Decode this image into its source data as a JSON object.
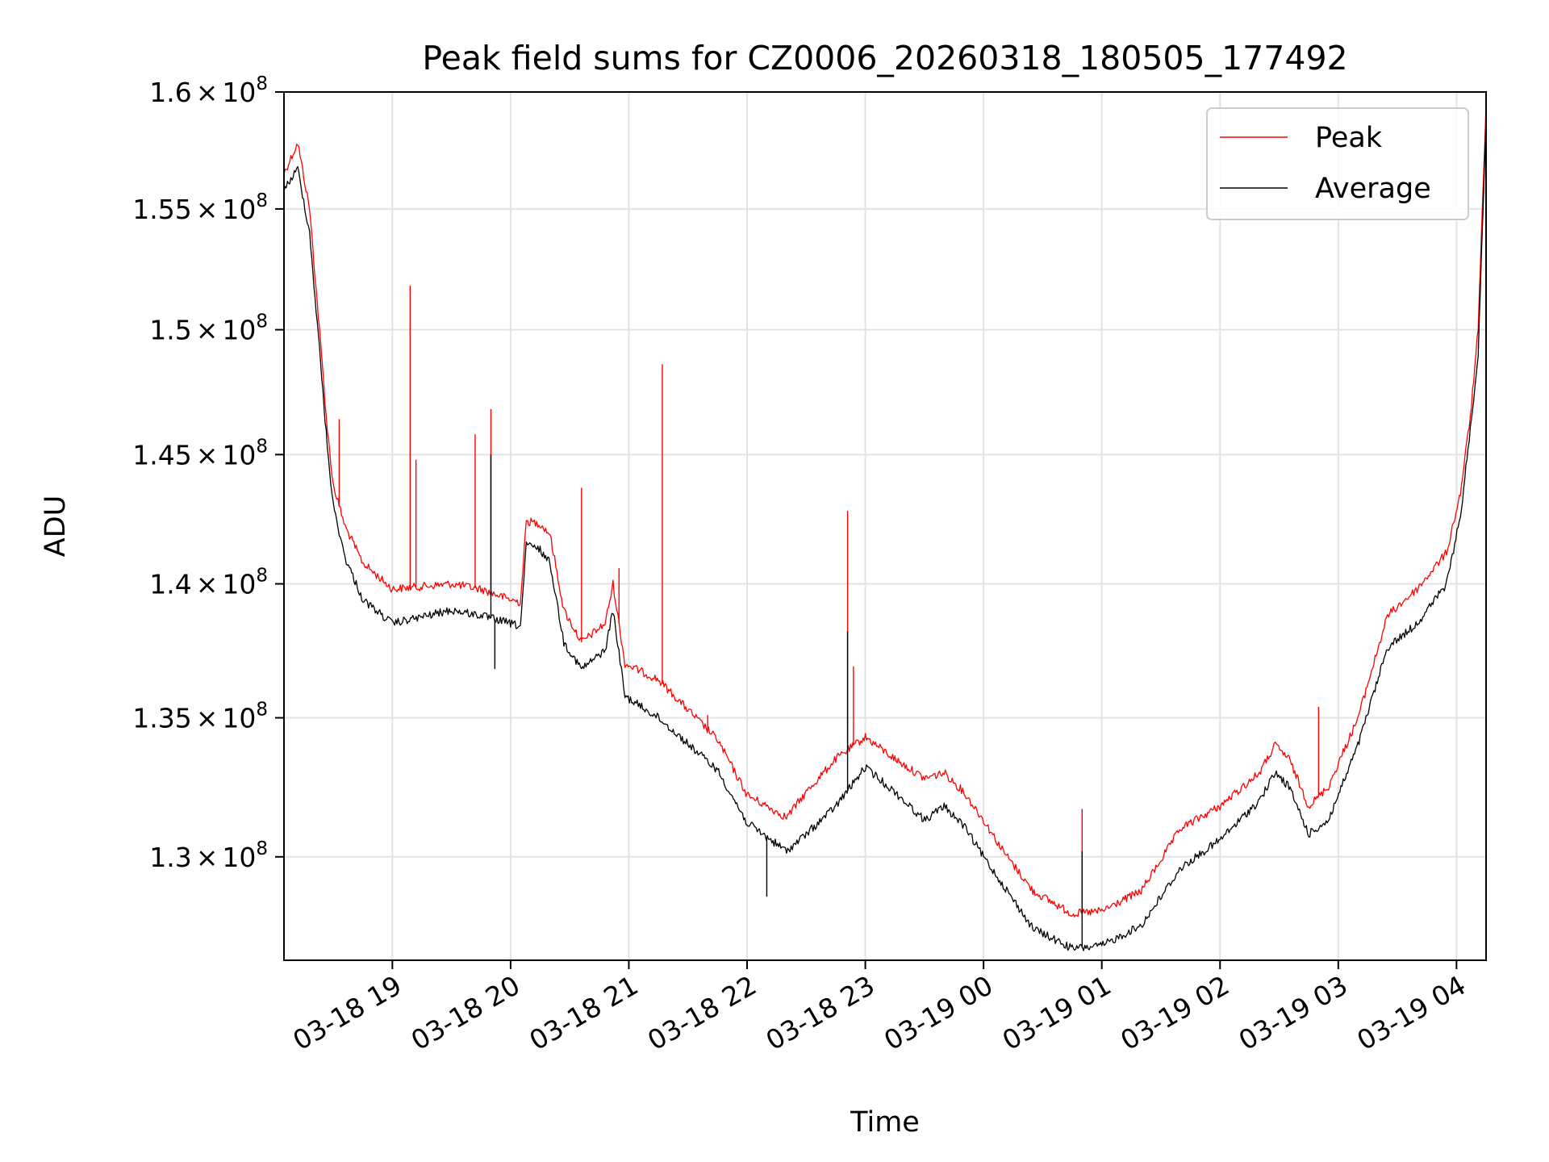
{
  "chart_data": {
    "type": "line",
    "title": "Peak field sums for CZ0006_20260318_180505_177492",
    "xlabel": "Time",
    "ylabel": "ADU",
    "xlim": [
      "03-18 18:05",
      "03-19 04:15"
    ],
    "ylim": [
      126400000,
      160000000
    ],
    "y_log_scale": true,
    "grid": true,
    "legend_position": "top-right",
    "x_ticks": [
      {
        "value": "03-18 19:00",
        "label": "03-18 19"
      },
      {
        "value": "03-18 20:00",
        "label": "03-18 20"
      },
      {
        "value": "03-18 21:00",
        "label": "03-18 21"
      },
      {
        "value": "03-18 22:00",
        "label": "03-18 22"
      },
      {
        "value": "03-18 23:00",
        "label": "03-18 23"
      },
      {
        "value": "03-19 00:00",
        "label": "03-19 00"
      },
      {
        "value": "03-19 01:00",
        "label": "03-19 01"
      },
      {
        "value": "03-19 02:00",
        "label": "03-19 02"
      },
      {
        "value": "03-19 03:00",
        "label": "03-19 03"
      },
      {
        "value": "03-19 04:00",
        "label": "03-19 04"
      }
    ],
    "y_ticks": [
      {
        "value": 130000000,
        "mantissa": "1.3",
        "base": "10",
        "exponent": "8"
      },
      {
        "value": 135000000,
        "mantissa": "1.35",
        "base": "10",
        "exponent": "8"
      },
      {
        "value": 140000000,
        "mantissa": "1.4",
        "base": "10",
        "exponent": "8"
      },
      {
        "value": 145000000,
        "mantissa": "1.45",
        "base": "10",
        "exponent": "8"
      },
      {
        "value": 150000000,
        "mantissa": "1.5",
        "base": "10",
        "exponent": "8"
      },
      {
        "value": 155000000,
        "mantissa": "1.55",
        "base": "10",
        "exponent": "8"
      },
      {
        "value": 160000000,
        "mantissa": "1.6",
        "base": "10",
        "exponent": "8"
      }
    ],
    "series": [
      {
        "name": "Peak",
        "color": "#ff0000",
        "points": [
          [
            "03-18 18:05",
            156500000
          ],
          [
            "03-18 18:12",
            157800000
          ],
          [
            "03-18 18:18",
            155000000
          ],
          [
            "03-18 18:23",
            150000000
          ],
          [
            "03-18 18:27",
            146000000
          ],
          [
            "03-18 18:30",
            143800000
          ],
          [
            "03-18 18:36",
            142200000
          ],
          [
            "03-18 18:45",
            140800000
          ],
          [
            "03-18 19:00",
            139800000
          ],
          [
            "03-18 19:30",
            140000000
          ],
          [
            "03-18 19:45",
            139800000
          ],
          [
            "03-18 20:00",
            139400000
          ],
          [
            "03-18 20:05",
            139300000
          ],
          [
            "03-18 20:08",
            142400000
          ],
          [
            "03-18 20:15",
            142300000
          ],
          [
            "03-18 20:20",
            141900000
          ],
          [
            "03-18 20:27",
            139000000
          ],
          [
            "03-18 20:36",
            137800000
          ],
          [
            "03-18 20:48",
            138500000
          ],
          [
            "03-18 20:52",
            140000000
          ],
          [
            "03-18 20:58",
            137000000
          ],
          [
            "03-18 21:15",
            136400000
          ],
          [
            "03-18 21:45",
            134200000
          ],
          [
            "03-18 22:00",
            132200000
          ],
          [
            "03-18 22:20",
            131400000
          ],
          [
            "03-18 22:30",
            132300000
          ],
          [
            "03-18 22:45",
            133500000
          ],
          [
            "03-18 23:00",
            134300000
          ],
          [
            "03-18 23:15",
            133500000
          ],
          [
            "03-18 23:30",
            132800000
          ],
          [
            "03-18 23:40",
            133000000
          ],
          [
            "03-18 23:50",
            132300000
          ],
          [
            "03-19 00:00",
            131300000
          ],
          [
            "03-19 00:10",
            130200000
          ],
          [
            "03-19 00:25",
            128800000
          ],
          [
            "03-19 00:45",
            128000000
          ],
          [
            "03-19 01:00",
            128100000
          ],
          [
            "03-19 01:20",
            128800000
          ],
          [
            "03-19 01:40",
            131000000
          ],
          [
            "03-19 02:00",
            131800000
          ],
          [
            "03-19 02:20",
            133000000
          ],
          [
            "03-19 02:28",
            134000000
          ],
          [
            "03-19 02:35",
            133500000
          ],
          [
            "03-19 02:45",
            131800000
          ],
          [
            "03-19 02:55",
            132500000
          ],
          [
            "03-19 03:10",
            135000000
          ],
          [
            "03-19 03:25",
            138800000
          ],
          [
            "03-19 03:40",
            139800000
          ],
          [
            "03-19 03:55",
            141200000
          ],
          [
            "03-19 04:02",
            143500000
          ],
          [
            "03-19 04:07",
            146500000
          ],
          [
            "03-19 04:11",
            150000000
          ],
          [
            "03-19 04:15",
            159500000
          ]
        ]
      },
      {
        "name": "Average",
        "color": "#000000",
        "points": [
          [
            "03-18 18:05",
            155800000
          ],
          [
            "03-18 18:12",
            156700000
          ],
          [
            "03-18 18:18",
            154000000
          ],
          [
            "03-18 18:23",
            149200000
          ],
          [
            "03-18 18:27",
            145300000
          ],
          [
            "03-18 18:30",
            143000000
          ],
          [
            "03-18 18:36",
            141000000
          ],
          [
            "03-18 18:45",
            139400000
          ],
          [
            "03-18 19:00",
            138500000
          ],
          [
            "03-18 19:30",
            139000000
          ],
          [
            "03-18 19:45",
            138800000
          ],
          [
            "03-18 20:00",
            138500000
          ],
          [
            "03-18 20:05",
            138400000
          ],
          [
            "03-18 20:08",
            141500000
          ],
          [
            "03-18 20:15",
            141300000
          ],
          [
            "03-18 20:20",
            140800000
          ],
          [
            "03-18 20:27",
            137800000
          ],
          [
            "03-18 20:36",
            136800000
          ],
          [
            "03-18 20:48",
            137500000
          ],
          [
            "03-18 20:52",
            139000000
          ],
          [
            "03-18 20:58",
            135800000
          ],
          [
            "03-18 21:15",
            135000000
          ],
          [
            "03-18 21:45",
            133100000
          ],
          [
            "03-18 22:00",
            131200000
          ],
          [
            "03-18 22:20",
            130200000
          ],
          [
            "03-18 22:30",
            130800000
          ],
          [
            "03-18 22:45",
            131800000
          ],
          [
            "03-18 23:00",
            133200000
          ],
          [
            "03-18 23:15",
            132300000
          ],
          [
            "03-18 23:30",
            131300000
          ],
          [
            "03-18 23:40",
            131800000
          ],
          [
            "03-18 23:50",
            131100000
          ],
          [
            "03-19 00:00",
            130000000
          ],
          [
            "03-19 00:10",
            129000000
          ],
          [
            "03-19 00:25",
            127500000
          ],
          [
            "03-19 00:45",
            126800000
          ],
          [
            "03-19 01:00",
            126900000
          ],
          [
            "03-19 01:20",
            127600000
          ],
          [
            "03-19 01:40",
            129600000
          ],
          [
            "03-19 02:00",
            130600000
          ],
          [
            "03-19 02:20",
            132000000
          ],
          [
            "03-19 02:28",
            133000000
          ],
          [
            "03-19 02:35",
            132500000
          ],
          [
            "03-19 02:45",
            130800000
          ],
          [
            "03-19 02:55",
            131300000
          ],
          [
            "03-19 03:10",
            134000000
          ],
          [
            "03-19 03:25",
            137600000
          ],
          [
            "03-19 03:40",
            138500000
          ],
          [
            "03-19 03:55",
            140000000
          ],
          [
            "03-19 04:02",
            142600000
          ],
          [
            "03-19 04:07",
            146000000
          ],
          [
            "03-19 04:11",
            149000000
          ],
          [
            "03-19 04:15",
            158800000
          ]
        ]
      }
    ],
    "spikes": [
      {
        "series": "Peak",
        "x": "03-18 18:33",
        "y": 146400000
      },
      {
        "series": "Peak",
        "x": "03-18 19:09",
        "y": 151800000
      },
      {
        "series": "Peak",
        "x": "03-18 19:12",
        "y": 144800000
      },
      {
        "series": "Peak",
        "x": "03-18 19:42",
        "y": 145800000
      },
      {
        "series": "Peak",
        "x": "03-18 19:50",
        "y": 146800000
      },
      {
        "series": "Peak",
        "x": "03-18 20:36",
        "y": 143700000
      },
      {
        "series": "Peak",
        "x": "03-18 20:55",
        "y": 140600000
      },
      {
        "series": "Peak",
        "x": "03-18 21:17",
        "y": 148600000
      },
      {
        "series": "Peak",
        "x": "03-18 21:40",
        "y": 135100000
      },
      {
        "series": "Peak",
        "x": "03-18 22:51",
        "y": 142800000
      },
      {
        "series": "Peak",
        "x": "03-18 22:54",
        "y": 136900000
      },
      {
        "series": "Peak",
        "x": "03-19 00:50",
        "y": 131700000
      },
      {
        "series": "Peak",
        "x": "03-19 02:50",
        "y": 135400000
      },
      {
        "series": "Average",
        "x": "03-18 19:50",
        "y": 145000000
      },
      {
        "series": "Average",
        "x": "03-18 19:52",
        "y": 136800000
      },
      {
        "series": "Average",
        "x": "03-18 22:51",
        "y": 138200000
      },
      {
        "series": "Average",
        "x": "03-18 22:10",
        "y": 128600000
      },
      {
        "series": "Average",
        "x": "03-19 00:50",
        "y": 130200000
      }
    ]
  }
}
